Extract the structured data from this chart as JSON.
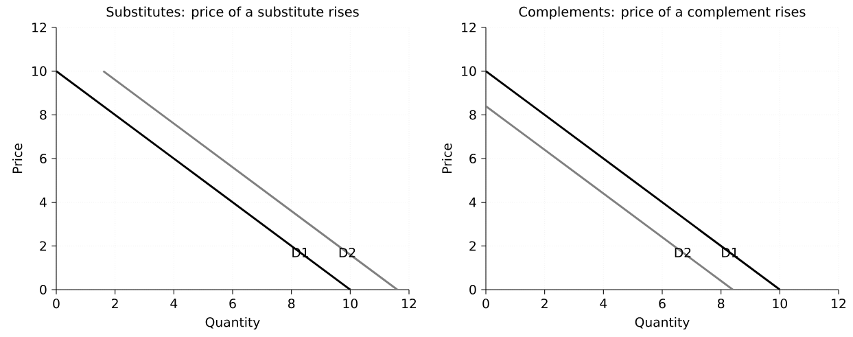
{
  "chart_data": [
    {
      "type": "line",
      "title": "Substitutes: price of a substitute rises",
      "xlabel": "Quantity",
      "ylabel": "Price",
      "series": [
        {
          "color": "#000000",
          "x": [
            0,
            10
          ],
          "values": [
            10,
            0
          ]
        },
        {
          "color": "#808080",
          "x": [
            1.6,
            11.6
          ],
          "values": [
            10,
            0
          ]
        }
      ],
      "annotations": [
        {
          "text": "D1",
          "x": 8.3,
          "y": 1.7
        },
        {
          "text": "D2",
          "x": 9.9,
          "y": 1.7
        }
      ],
      "xlim": [
        0,
        12
      ],
      "ylim": [
        0,
        12
      ],
      "xticks": [
        0,
        2,
        4,
        6,
        8,
        10,
        12
      ],
      "yticks": [
        0,
        2,
        4,
        6,
        8,
        10,
        12
      ],
      "grid": true
    },
    {
      "type": "line",
      "title": "Complements: price of a complement rises",
      "xlabel": "Quantity",
      "ylabel": "Price",
      "series": [
        {
          "color": "#000000",
          "x": [
            0,
            10
          ],
          "values": [
            10,
            0
          ]
        },
        {
          "color": "#808080",
          "x": [
            0,
            8.4
          ],
          "values": [
            8.4,
            0
          ]
        }
      ],
      "annotations": [
        {
          "text": "D2",
          "x": 6.7,
          "y": 1.7
        },
        {
          "text": "D1",
          "x": 8.3,
          "y": 1.7
        }
      ],
      "xlim": [
        0,
        12
      ],
      "ylim": [
        0,
        12
      ],
      "xticks": [
        0,
        2,
        4,
        6,
        8,
        10,
        12
      ],
      "yticks": [
        0,
        2,
        4,
        6,
        8,
        10,
        12
      ],
      "grid": true
    }
  ]
}
